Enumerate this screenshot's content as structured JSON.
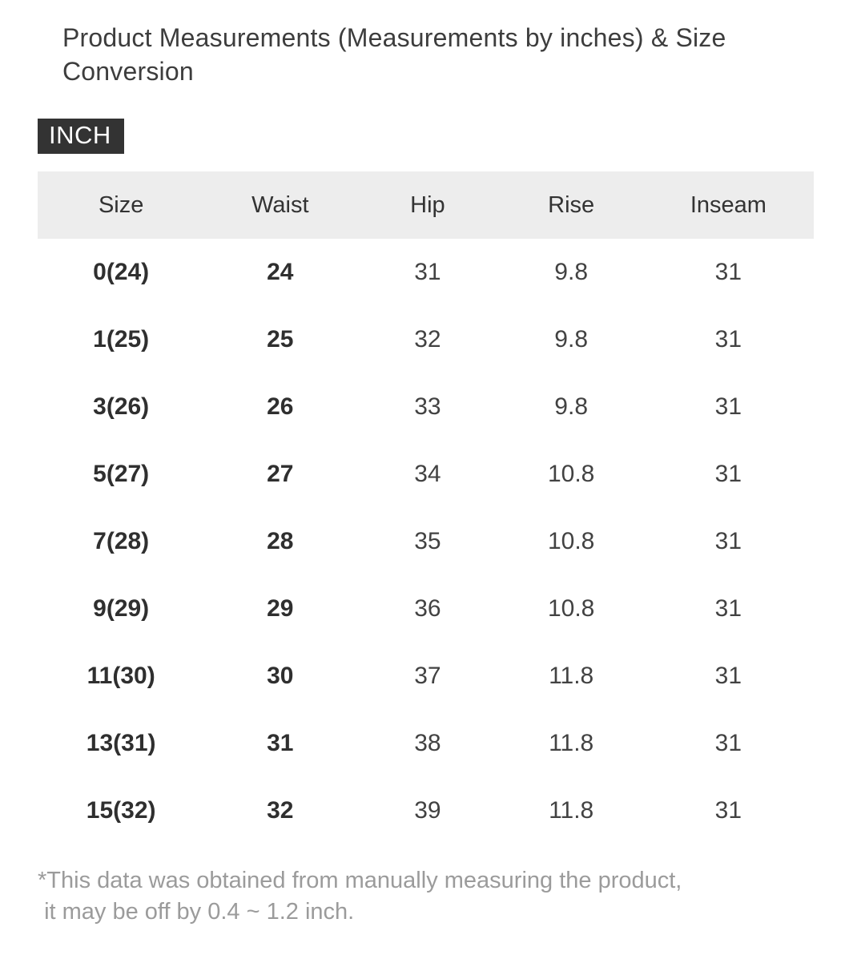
{
  "header": {
    "title_line1": "Product Measurements (Measurements by inches) & Size",
    "title_line2": "Conversion",
    "unit_badge": "INCH"
  },
  "table": {
    "headers": [
      "Size",
      "Waist",
      "Hip",
      "Rise",
      "Inseam"
    ],
    "rows": [
      [
        "0(24)",
        "24",
        "31",
        "9.8",
        "31"
      ],
      [
        "1(25)",
        "25",
        "32",
        "9.8",
        "31"
      ],
      [
        "3(26)",
        "26",
        "33",
        "9.8",
        "31"
      ],
      [
        "5(27)",
        "27",
        "34",
        "10.8",
        "31"
      ],
      [
        "7(28)",
        "28",
        "35",
        "10.8",
        "31"
      ],
      [
        "9(29)",
        "29",
        "36",
        "10.8",
        "31"
      ],
      [
        "11(30)",
        "30",
        "37",
        "11.8",
        "31"
      ],
      [
        "13(31)",
        "31",
        "38",
        "11.8",
        "31"
      ],
      [
        "15(32)",
        "32",
        "39",
        "11.8",
        "31"
      ]
    ]
  },
  "footnote": {
    "line1": "*This data was obtained from manually measuring the product,",
    "line2": " it may be off by 0.4 ~ 1.2 inch."
  },
  "colors": {
    "badge_background": "#333333",
    "header_row_background": "#ededed",
    "text_dark": "#333333",
    "footnote_gray": "#9b9b9b"
  }
}
